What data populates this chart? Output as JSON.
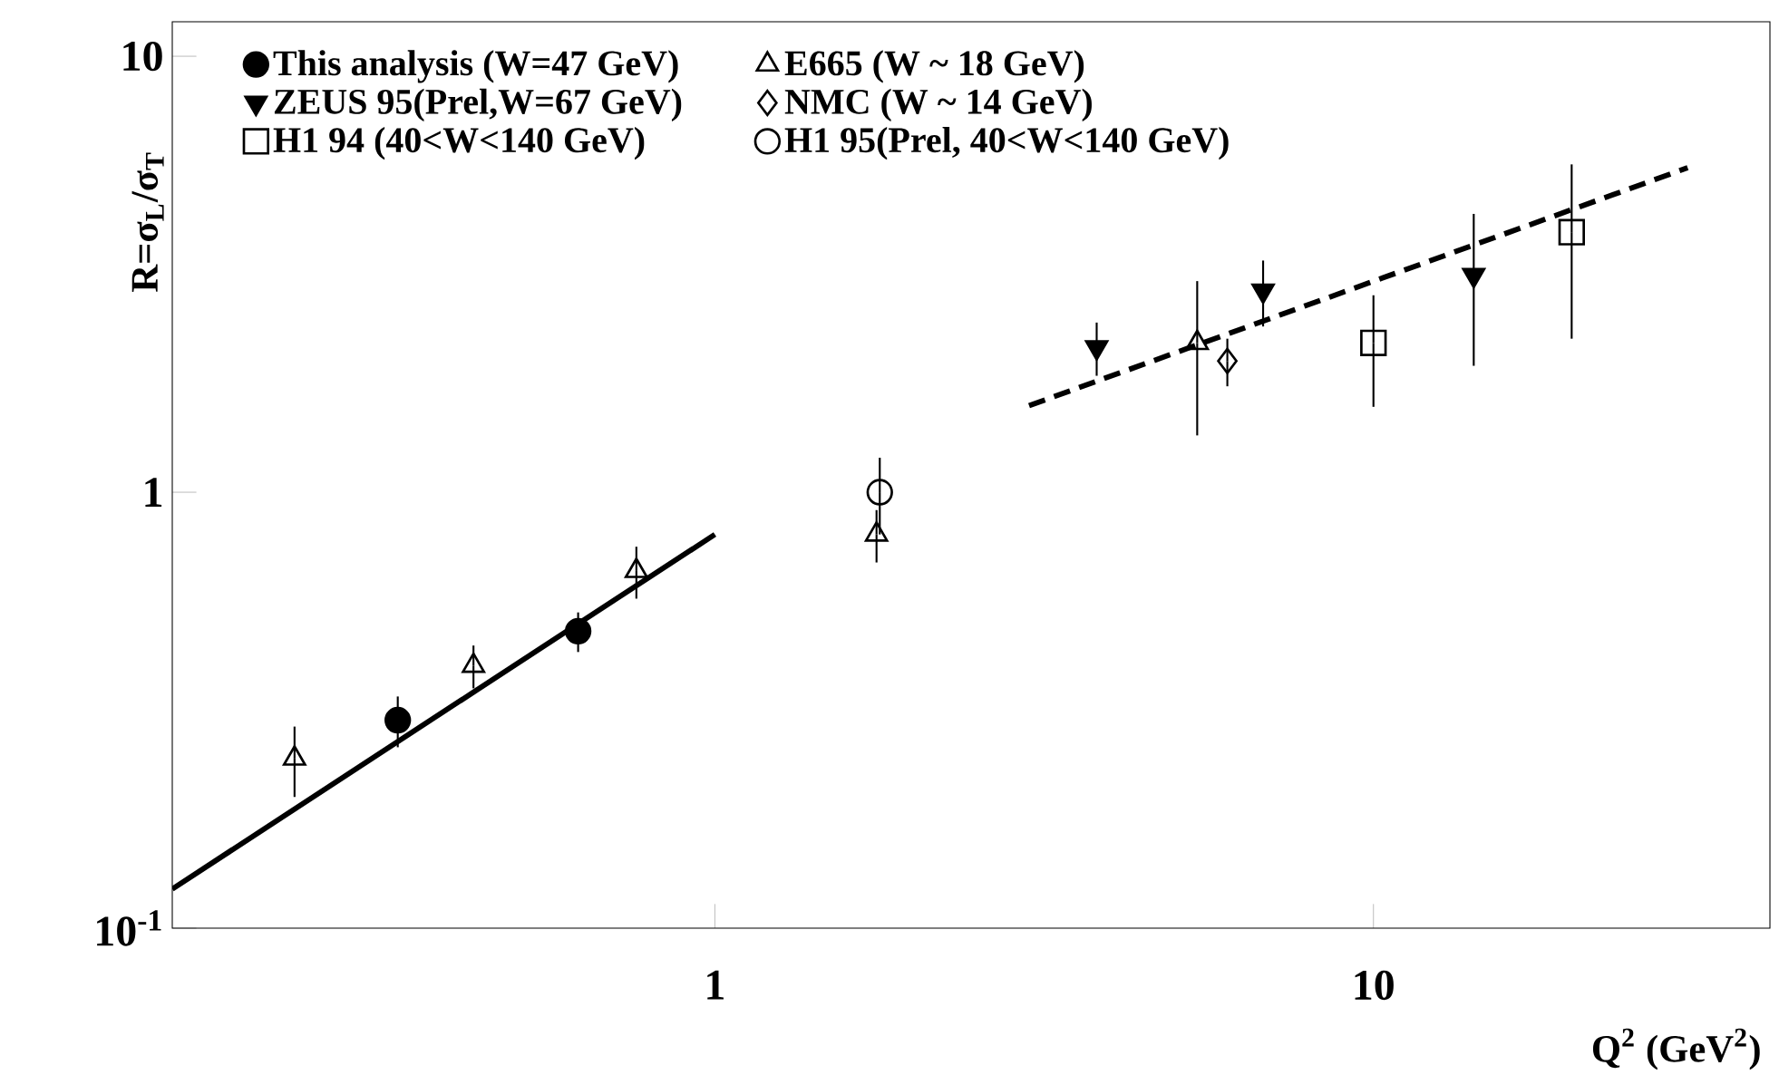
{
  "chart_data": {
    "type": "scatter",
    "log": "xy",
    "legend": "top left",
    "xlabel": "Q$^{2}$ (GeV$^{2}$)",
    "ylabel": "R=σ$_{L}$/σ$_{T}$",
    "xlim": [
      0.15,
      40
    ],
    "ylim": [
      0.1,
      12
    ],
    "xticks": [
      1,
      10
    ],
    "yticks": [
      {
        "value": 0.1,
        "label": "10$^{-1}$"
      },
      1,
      10
    ],
    "series": [
      {
        "name": "This analysis (W=47 GeV)",
        "color": "#000000",
        "marker": "circle",
        "x": [
          0.33,
          0.62
        ],
        "values": [
          0.3,
          0.48
        ],
        "errors": [
          0.04,
          0.05
        ]
      },
      {
        "name": "E665 (W ~ 18 GeV)",
        "color": "#000000",
        "marker": "triangle-open",
        "x": [
          0.23,
          0.43,
          0.76,
          1.76,
          5.4
        ],
        "values": [
          0.245,
          0.4,
          0.66,
          0.8,
          2.2
        ],
        "errors": [
          0.045,
          0.045,
          0.09,
          0.11,
          0.85
        ]
      },
      {
        "name": "ZEUS 95(Prel,W=67 GeV)",
        "color": "#000000",
        "marker": "triangle-down",
        "x": [
          3.8,
          6.8,
          14.2
        ],
        "values": [
          2.15,
          2.9,
          3.15
        ],
        "errors": [
          0.3,
          0.5,
          1.2
        ]
      },
      {
        "name": "NMC (W ~ 14 GeV)",
        "color": "#000000",
        "marker": "diamond-open",
        "x": [
          6.0
        ],
        "values": [
          2.0
        ],
        "errors": [
          0.25
        ]
      },
      {
        "name": "H1 94 (40<W<140 GeV)",
        "color": "#000000",
        "marker": "square-open",
        "x": [
          10,
          20
        ],
        "values": [
          2.2,
          3.95
        ],
        "errors": [
          0.63,
          1.7
        ]
      },
      {
        "name": "H1 95(Prel, 40<W<140 GeV)",
        "color": "#000000",
        "marker": "circle-open",
        "x": [
          1.78
        ],
        "values": [
          1.0
        ],
        "errors": [
          0.2
        ]
      },
      {
        "type": "line",
        "color": "#000000",
        "line_style": "solid",
        "marker": "none",
        "x": [
          0.15,
          1
        ],
        "values": [
          0.123,
          0.8
        ]
      },
      {
        "type": "line",
        "color": "#000000",
        "line_style": "dashed",
        "marker": "none",
        "x": [
          3,
          30
        ],
        "values": [
          1.58,
          5.55
        ]
      }
    ]
  }
}
